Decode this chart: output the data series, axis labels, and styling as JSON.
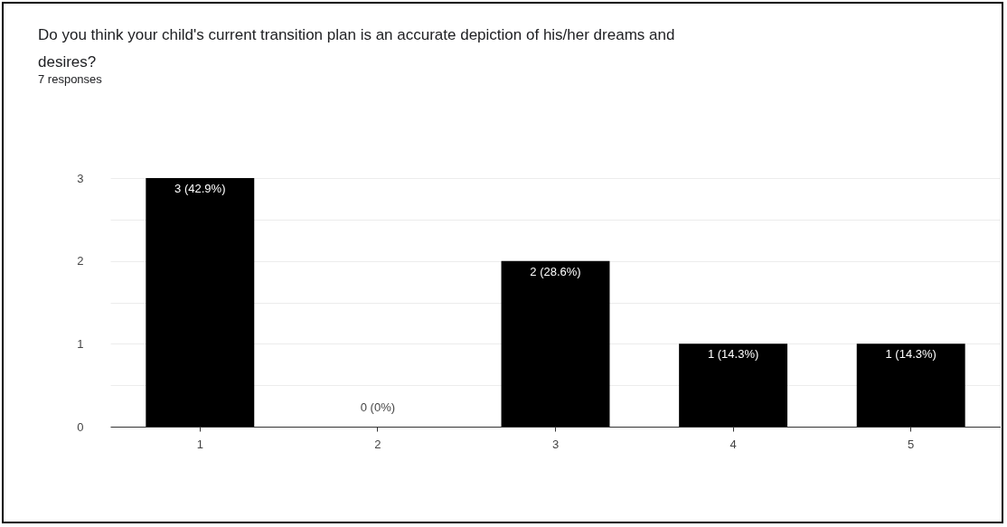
{
  "chart_data": {
    "type": "bar",
    "title": "Do you think your child's current transition plan is an accurate depiction of his/her dreams and desires?",
    "subtitle": "7 responses",
    "categories": [
      "1",
      "2",
      "3",
      "4",
      "5"
    ],
    "values": [
      3,
      0,
      2,
      1,
      1
    ],
    "color": "#000000",
    "value_labels": [
      "3 (42.9%)",
      "0 (0%)",
      "2 (28.6%)",
      "1 (14.3%)",
      "1 (14.3%)"
    ],
    "ylim": [
      0,
      3
    ],
    "yticks": [
      0,
      {
        "value": 0.5,
        "label": null
      },
      1,
      {
        "value": 1.5,
        "label": null
      },
      2,
      {
        "value": 2.5,
        "label": null
      },
      3
    ],
    "grid": "y"
  }
}
